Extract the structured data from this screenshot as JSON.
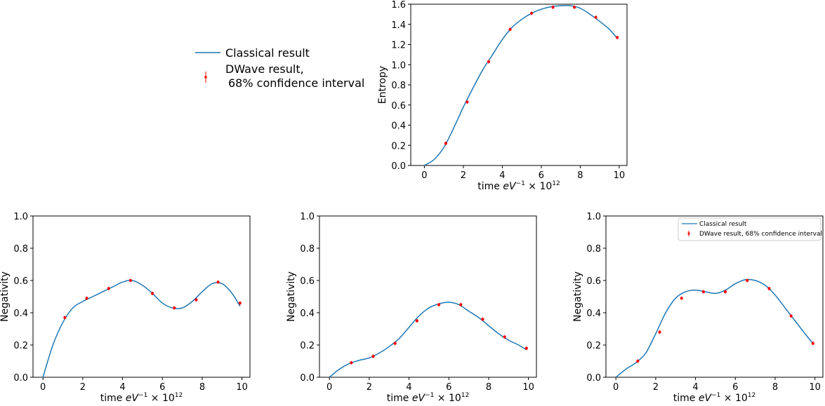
{
  "legend_main": {
    "classical_label": "Classical result",
    "dwave_label_line1": "DWave result,",
    "dwave_label_line2": "68% confidence interval"
  },
  "legend_small": {
    "classical_label": "Classical result",
    "dwave_label": "DWave result, 68% confidence interval"
  },
  "colors": {
    "classical_line": "#1f77b4",
    "dwave_points": "#ff0000",
    "axes": "#000000"
  },
  "chart_data": [
    {
      "type": "line",
      "ylabel": "Entropy",
      "xlabel_prefix": "time ",
      "xlabel_italic": "eV",
      "xlabel_sup1": "−1",
      "xlabel_mid": " × 10",
      "xlabel_sup2": "12",
      "xlim": [
        -0.7,
        10.4
      ],
      "ylim": [
        0,
        1.6
      ],
      "xticks": [
        "0",
        "2",
        "4",
        "6",
        "8",
        "10"
      ],
      "yticks": [
        "0.0",
        "0.2",
        "0.4",
        "0.6",
        "0.8",
        "1.0",
        "1.2",
        "1.4",
        "1.6"
      ],
      "series": [
        {
          "name": "Classical result",
          "kind": "line",
          "x": [
            0,
            0.5,
            1,
            1.5,
            2,
            2.5,
            3,
            3.5,
            4,
            4.5,
            5,
            5.5,
            6,
            6.5,
            7,
            7.5,
            8,
            8.5,
            9,
            9.5,
            9.9
          ],
          "y": [
            0.0,
            0.06,
            0.18,
            0.37,
            0.58,
            0.77,
            0.95,
            1.1,
            1.25,
            1.37,
            1.45,
            1.51,
            1.55,
            1.575,
            1.585,
            1.585,
            1.56,
            1.5,
            1.43,
            1.35,
            1.26
          ]
        },
        {
          "name": "DWave result, 68% confidence interval",
          "kind": "points",
          "x": [
            1.1,
            2.2,
            3.3,
            4.4,
            5.5,
            6.6,
            7.7,
            8.8,
            9.9
          ],
          "y": [
            0.22,
            0.63,
            1.03,
            1.35,
            1.51,
            1.57,
            1.57,
            1.47,
            1.27
          ]
        }
      ]
    },
    {
      "type": "line",
      "ylabel": "Negativity",
      "xlabel_prefix": "time ",
      "xlabel_italic": "eV",
      "xlabel_sup1": "−1",
      "xlabel_mid": " × 10",
      "xlabel_sup2": "12",
      "xlim": [
        -0.5,
        10.4
      ],
      "ylim": [
        0,
        1.0
      ],
      "xticks": [
        "0",
        "2",
        "4",
        "6",
        "8",
        "10"
      ],
      "yticks": [
        "0.0",
        "0.2",
        "0.4",
        "0.6",
        "0.8",
        "1.0"
      ],
      "series": [
        {
          "name": "Classical result",
          "kind": "line",
          "x": [
            0,
            0.5,
            1,
            1.5,
            2,
            2.5,
            3,
            3.5,
            4,
            4.5,
            5,
            5.5,
            6,
            6.5,
            7,
            7.5,
            8,
            8.5,
            9,
            9.5,
            9.9
          ],
          "y": [
            0.0,
            0.2,
            0.34,
            0.43,
            0.47,
            0.5,
            0.53,
            0.56,
            0.59,
            0.6,
            0.57,
            0.52,
            0.46,
            0.43,
            0.43,
            0.47,
            0.53,
            0.58,
            0.58,
            0.52,
            0.44
          ]
        },
        {
          "name": "DWave result, 68% confidence interval",
          "kind": "points",
          "x": [
            1.1,
            2.2,
            3.3,
            4.4,
            5.5,
            6.6,
            7.7,
            8.8,
            9.9
          ],
          "y": [
            0.37,
            0.49,
            0.55,
            0.6,
            0.52,
            0.43,
            0.48,
            0.59,
            0.46
          ]
        }
      ]
    },
    {
      "type": "line",
      "ylabel": "Negativity",
      "xlabel_prefix": "time ",
      "xlabel_italic": "eV",
      "xlabel_sup1": "−1",
      "xlabel_mid": " × 10",
      "xlabel_sup2": "12",
      "xlim": [
        -0.5,
        10.4
      ],
      "ylim": [
        0,
        1.0
      ],
      "xticks": [
        "0",
        "2",
        "4",
        "6",
        "8",
        "10"
      ],
      "yticks": [
        "0.0",
        "0.2",
        "0.4",
        "0.6",
        "0.8",
        "1.0"
      ],
      "series": [
        {
          "name": "Classical result",
          "kind": "line",
          "x": [
            0,
            0.5,
            1,
            1.5,
            2,
            2.5,
            3,
            3.5,
            4,
            4.5,
            5,
            5.5,
            6,
            6.5,
            7,
            7.5,
            8,
            8.5,
            9,
            9.5,
            9.9
          ],
          "y": [
            0.0,
            0.05,
            0.085,
            0.105,
            0.12,
            0.15,
            0.19,
            0.24,
            0.31,
            0.38,
            0.43,
            0.455,
            0.465,
            0.45,
            0.41,
            0.37,
            0.32,
            0.27,
            0.23,
            0.2,
            0.17
          ]
        },
        {
          "name": "DWave result, 68% confidence interval",
          "kind": "points",
          "x": [
            1.1,
            2.2,
            3.3,
            4.4,
            5.5,
            6.6,
            7.7,
            8.8,
            9.9
          ],
          "y": [
            0.09,
            0.13,
            0.21,
            0.35,
            0.45,
            0.45,
            0.36,
            0.25,
            0.18
          ]
        }
      ]
    },
    {
      "type": "line",
      "ylabel": "Negativity",
      "xlabel_prefix": "time ",
      "xlabel_italic": "eV",
      "xlabel_sup1": "−1",
      "xlabel_mid": " × 10",
      "xlabel_sup2": "12",
      "xlim": [
        -0.5,
        10.4
      ],
      "ylim": [
        0,
        1.0
      ],
      "xticks": [
        "0",
        "2",
        "4",
        "6",
        "8",
        "10"
      ],
      "yticks": [
        "0.0",
        "0.2",
        "0.4",
        "0.6",
        "0.8",
        "1.0"
      ],
      "legend": "top-right",
      "series": [
        {
          "name": "Classical result",
          "kind": "line",
          "x": [
            0,
            0.5,
            1,
            1.5,
            2,
            2.5,
            3,
            3.5,
            4,
            4.5,
            5,
            5.5,
            6,
            6.5,
            7,
            7.5,
            8,
            8.5,
            9,
            9.5,
            9.9
          ],
          "y": [
            0.0,
            0.05,
            0.09,
            0.15,
            0.27,
            0.4,
            0.49,
            0.53,
            0.54,
            0.53,
            0.52,
            0.54,
            0.58,
            0.605,
            0.6,
            0.57,
            0.51,
            0.43,
            0.35,
            0.27,
            0.21
          ]
        },
        {
          "name": "DWave result, 68% confidence interval",
          "kind": "points",
          "x": [
            1.1,
            2.2,
            3.3,
            4.4,
            5.5,
            6.6,
            7.7,
            8.8,
            9.9
          ],
          "y": [
            0.1,
            0.28,
            0.49,
            0.53,
            0.53,
            0.6,
            0.55,
            0.38,
            0.21
          ]
        }
      ]
    }
  ]
}
